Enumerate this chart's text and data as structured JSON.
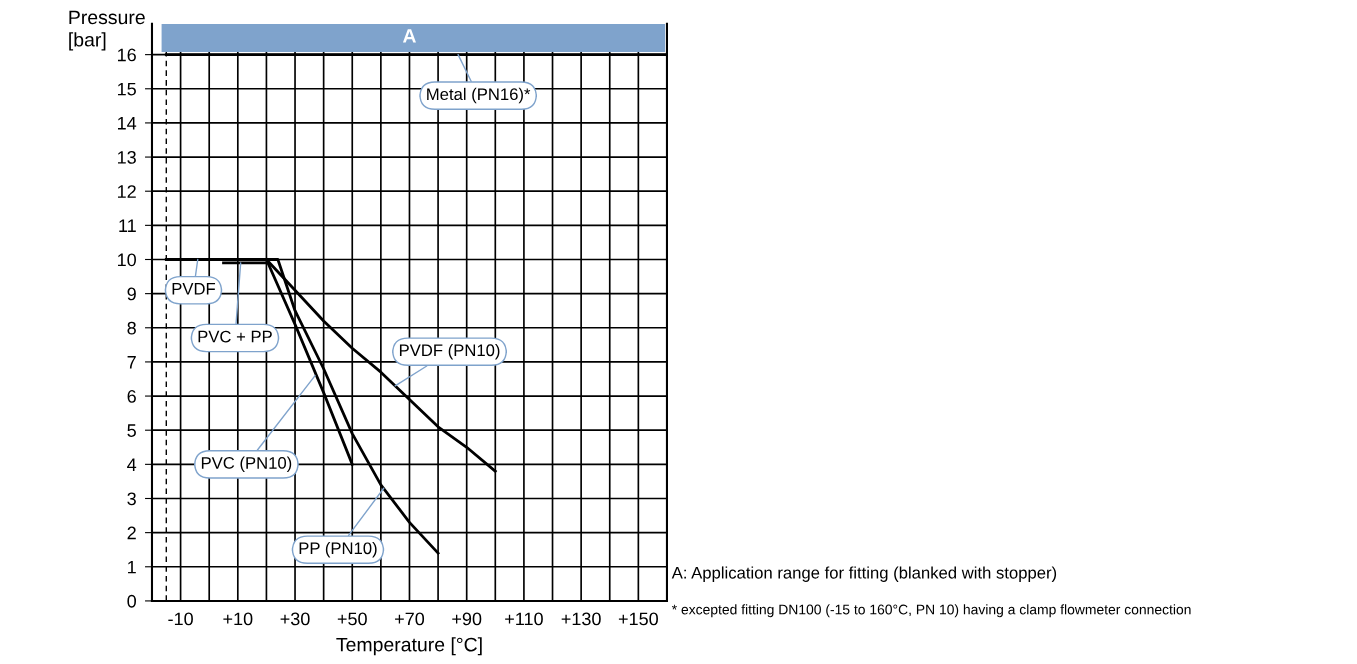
{
  "chart_data": {
    "type": "line",
    "xlabel": "Temperature [°C]",
    "ylabel": "Pressure\n[bar]",
    "xlim": [
      -20,
      160
    ],
    "ylim": [
      0,
      16.9
    ],
    "xticks": [
      {
        "value": -20,
        "label": null
      },
      -10,
      {
        "value": 0,
        "label": null
      },
      {
        "value": 10,
        "label": "+10"
      },
      {
        "value": 20,
        "label": null
      },
      {
        "value": 30,
        "label": "+30"
      },
      {
        "value": 40,
        "label": null
      },
      {
        "value": 50,
        "label": "+50"
      },
      {
        "value": 60,
        "label": null
      },
      {
        "value": 70,
        "label": "+70"
      },
      {
        "value": 80,
        "label": null
      },
      {
        "value": 90,
        "label": "+90"
      },
      {
        "value": 100,
        "label": null
      },
      {
        "value": 110,
        "label": "+110"
      },
      {
        "value": 120,
        "label": null
      },
      {
        "value": 130,
        "label": "+130"
      },
      {
        "value": 140,
        "label": null
      },
      {
        "value": 150,
        "label": "+150"
      },
      {
        "value": 160,
        "label": null
      }
    ],
    "yticks": [
      0,
      1,
      2,
      3,
      4,
      5,
      6,
      7,
      8,
      9,
      10,
      11,
      12,
      13,
      14,
      15,
      16
    ],
    "grid": true,
    "marker": "none",
    "line_style": "solid",
    "series": [
      {
        "color": "#000000",
        "x": [
          -15,
          160
        ],
        "values": [
          16,
          16
        ]
      },
      {
        "color": "#000000",
        "x": [
          -15,
          20,
          30,
          40,
          50,
          60,
          70,
          80,
          90,
          100
        ],
        "values": [
          10,
          10,
          9.1,
          8.2,
          7.4,
          6.7,
          5.9,
          5.1,
          4.5,
          3.8
        ]
      },
      {
        "color": "#000000",
        "x": [
          5,
          20
        ],
        "values": [
          9.9,
          9.9
        ]
      },
      {
        "color": "#000000",
        "x": [
          20,
          30,
          40,
          50
        ],
        "values": [
          10,
          8.1,
          6.1,
          4.0
        ]
      },
      {
        "color": "#000000",
        "x": [
          20,
          24,
          30,
          40,
          50,
          60,
          70,
          80
        ],
        "values": [
          10,
          10,
          8.5,
          6.8,
          4.9,
          3.4,
          2.3,
          1.4
        ]
      }
    ],
    "ref_lines": [
      {
        "axis": "x",
        "value": -15,
        "label": null,
        "color": "#000000",
        "line_style": "dashed"
      }
    ],
    "bands": [
      {
        "axis": "y",
        "from": 16.1,
        "to": 16.9,
        "label": "A",
        "color": "#7fa3cc"
      }
    ],
    "annotations": [
      {
        "text": "Metal (PN16)*",
        "x": 87,
        "y": 16
      },
      {
        "text": "PVDF",
        "x": -4,
        "y": 10
      },
      {
        "text": "PVC + PP",
        "x": 11,
        "y": 9.9
      },
      {
        "text": "PVDF (PN10)",
        "x": 65,
        "y": 6.3
      },
      {
        "text": "PVC (PN10)",
        "x": 37,
        "y": 6.6
      },
      {
        "text": "PP (PN10)",
        "x": 61,
        "y": 3.3
      },
      "A: Application range for fitting (blanked with stopper)",
      "* excepted fitting DN100 (-15 to 160°C, PN 10) having a clamp flowmeter connection"
    ]
  }
}
